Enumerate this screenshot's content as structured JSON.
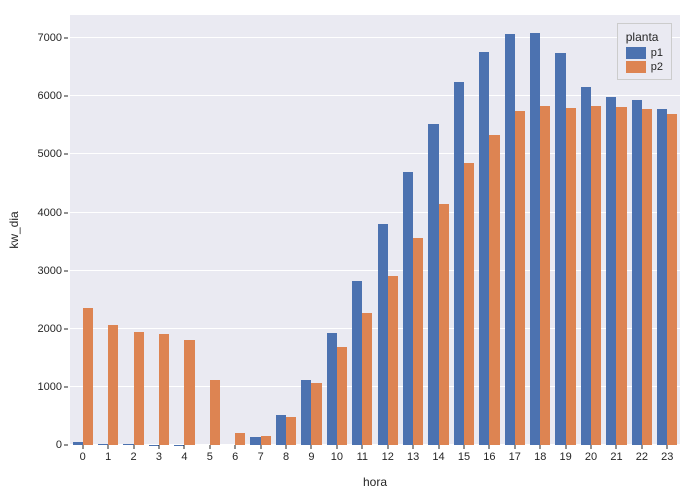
{
  "chart": {
    "type": "bar",
    "xlabel": "hora",
    "ylabel": "kw_dia",
    "background_color": "#eaeaf2",
    "grid_color": "#ffffff",
    "categories": [
      "0",
      "1",
      "2",
      "3",
      "4",
      "5",
      "6",
      "7",
      "8",
      "9",
      "10",
      "11",
      "12",
      "13",
      "14",
      "15",
      "16",
      "17",
      "18",
      "19",
      "20",
      "21",
      "22",
      "23"
    ],
    "series": [
      {
        "name": "p1",
        "color": "#4c72b0",
        "values": [
          50,
          20,
          10,
          5,
          5,
          0,
          0,
          140,
          520,
          1120,
          1920,
          2820,
          3800,
          4690,
          5530,
          6250,
          6770,
          7080,
          7090,
          6750,
          6160,
          5990,
          5940,
          5790
        ]
      },
      {
        "name": "p2",
        "color": "#dd8452",
        "values": [
          2360,
          2060,
          1940,
          1910,
          1810,
          1120,
          200,
          160,
          480,
          1060,
          1680,
          2280,
          2910,
          3560,
          4150,
          4860,
          5340,
          5740,
          5830,
          5800,
          5830,
          5820,
          5790,
          5690
        ]
      }
    ],
    "ylim": [
      0,
      7400
    ],
    "yticks": [
      0,
      1000,
      2000,
      3000,
      4000,
      5000,
      6000,
      7000
    ],
    "label_fontsize": 12,
    "tick_fontsize": 11,
    "bar_group_width": 0.8,
    "legend": {
      "title": "planta",
      "position": "upper-right"
    }
  }
}
